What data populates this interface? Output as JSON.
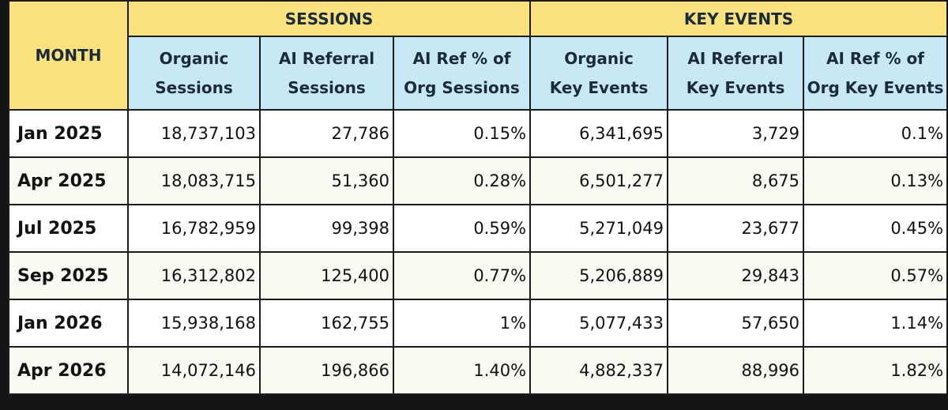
{
  "chart_data": {
    "type": "table",
    "header": {
      "month": "MONTH",
      "groups": [
        "SESSIONS",
        "KEY EVENTS"
      ],
      "columns": [
        [
          "Organic",
          "Sessions"
        ],
        [
          "AI Referral",
          "Sessions"
        ],
        [
          "AI Ref % of",
          "Org Sessions"
        ],
        [
          "Organic",
          "Key Events"
        ],
        [
          "AI Referral",
          "Key Events"
        ],
        [
          "AI Ref % of",
          "Org Key Events"
        ]
      ]
    },
    "rows": [
      {
        "month": "Jan 2025",
        "values": [
          "18,737,103",
          "27,786",
          "0.15%",
          "6,341,695",
          "3,729",
          "0.1%"
        ]
      },
      {
        "month": "Apr 2025",
        "values": [
          "18,083,715",
          "51,360",
          "0.28%",
          "6,501,277",
          "8,675",
          "0.13%"
        ]
      },
      {
        "month": "Jul 2025",
        "values": [
          "16,782,959",
          "99,398",
          "0.59%",
          "5,271,049",
          "23,677",
          "0.45%"
        ]
      },
      {
        "month": "Sep 2025",
        "values": [
          "16,312,802",
          "125,400",
          "0.77%",
          "5,206,889",
          "29,843",
          "0.57%"
        ]
      },
      {
        "month": "Jan 2026",
        "values": [
          "15,938,168",
          "162,755",
          "1%",
          "5,077,433",
          "57,650",
          "1.14%"
        ]
      },
      {
        "month": "Apr 2026",
        "values": [
          "14,072,146",
          "196,866",
          "1.40%",
          "4,882,337",
          "88,996",
          "1.82%"
        ]
      }
    ],
    "colors": {
      "group_header_bg": "#fbe27c",
      "column_header_bg": "#c8e8f6",
      "header_text": "#1a2b3c",
      "row_bg_odd": "#ffffff",
      "row_bg_even": "#fbfaf2",
      "border": "#1c1c1c"
    }
  }
}
